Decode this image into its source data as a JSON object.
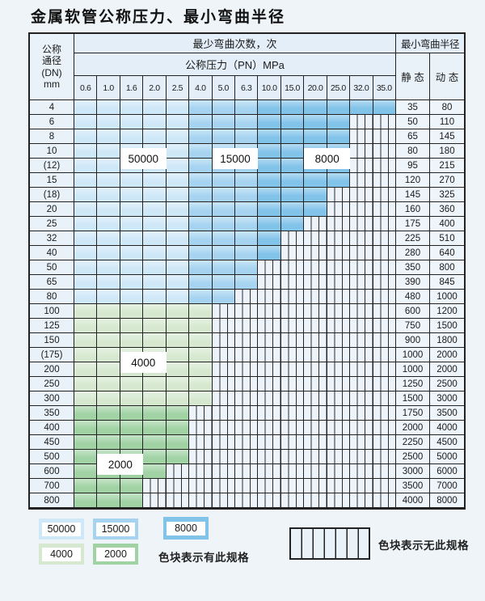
{
  "title": "金属软管公称压力、最小弯曲半径",
  "colors": {
    "c50000": "#cfe8f8",
    "c15000": "#a6d4f0",
    "c8000": "#82c3ea",
    "c4000": "#d6e9d0",
    "c2000": "#a0d2a4",
    "cell_bg": "#ecf3fa",
    "border": "#222222"
  },
  "table": {
    "corner_lines": [
      "公称",
      "通径",
      "(DN)",
      "mm"
    ],
    "bend_cycles_header": "最少弯曲次数，次",
    "pressure_header": "公称压力（PN）MPa",
    "radius_header": "最小弯曲半径",
    "static_header": "静 态",
    "dynamic_header": "动 态",
    "pressure_columns": [
      "0.6",
      "1.0",
      "1.6",
      "2.0",
      "2.5",
      "4.0",
      "5.0",
      "6.3",
      "10.0",
      "15.0",
      "20.0",
      "25.0",
      "32.0",
      "35.0"
    ],
    "blue_zone_cycles_by_column": {
      "0.6-2.5": "50000",
      "4.0-6.3": "15000",
      "10.0-35.0": "8000"
    },
    "rows": [
      {
        "dn": "4",
        "zone": "blue",
        "last_col_index": 13,
        "available_through": "35.0",
        "static": "35",
        "dynamic": "80"
      },
      {
        "dn": "6",
        "zone": "blue",
        "last_col_index": 11,
        "available_through": "25.0",
        "static": "50",
        "dynamic": "110"
      },
      {
        "dn": "8",
        "zone": "blue",
        "last_col_index": 11,
        "available_through": "25.0",
        "static": "65",
        "dynamic": "145"
      },
      {
        "dn": "10",
        "zone": "blue",
        "last_col_index": 11,
        "available_through": "25.0",
        "static": "80",
        "dynamic": "180"
      },
      {
        "dn": "(12)",
        "zone": "blue",
        "last_col_index": 11,
        "available_through": "25.0",
        "static": "95",
        "dynamic": "215"
      },
      {
        "dn": "15",
        "zone": "blue",
        "last_col_index": 11,
        "available_through": "25.0",
        "static": "120",
        "dynamic": "270"
      },
      {
        "dn": "(18)",
        "zone": "blue",
        "last_col_index": 10,
        "available_through": "20.0",
        "static": "145",
        "dynamic": "325"
      },
      {
        "dn": "20",
        "zone": "blue",
        "last_col_index": 10,
        "available_through": "20.0",
        "static": "160",
        "dynamic": "360"
      },
      {
        "dn": "25",
        "zone": "blue",
        "last_col_index": 9,
        "available_through": "15.0",
        "static": "175",
        "dynamic": "400"
      },
      {
        "dn": "32",
        "zone": "blue",
        "last_col_index": 8,
        "available_through": "10.0",
        "static": "225",
        "dynamic": "510"
      },
      {
        "dn": "40",
        "zone": "blue",
        "last_col_index": 8,
        "available_through": "10.0",
        "static": "280",
        "dynamic": "640"
      },
      {
        "dn": "50",
        "zone": "blue",
        "last_col_index": 7,
        "available_through": "6.3",
        "static": "350",
        "dynamic": "800"
      },
      {
        "dn": "65",
        "zone": "blue",
        "last_col_index": 7,
        "available_through": "6.3",
        "static": "390",
        "dynamic": "845"
      },
      {
        "dn": "80",
        "zone": "blue",
        "last_col_index": 6,
        "available_through": "5.0",
        "static": "480",
        "dynamic": "1000"
      },
      {
        "dn": "100",
        "zone": "c4000",
        "last_col_index": 5,
        "available_through": "4.0",
        "static": "600",
        "dynamic": "1200"
      },
      {
        "dn": "125",
        "zone": "c4000",
        "last_col_index": 5,
        "available_through": "4.0",
        "static": "750",
        "dynamic": "1500"
      },
      {
        "dn": "150",
        "zone": "c4000",
        "last_col_index": 5,
        "available_through": "4.0",
        "static": "900",
        "dynamic": "1800"
      },
      {
        "dn": "(175)",
        "zone": "c4000",
        "last_col_index": 5,
        "available_through": "4.0",
        "static": "1000",
        "dynamic": "2000"
      },
      {
        "dn": "200",
        "zone": "c4000",
        "last_col_index": 5,
        "available_through": "4.0",
        "static": "1000",
        "dynamic": "2000"
      },
      {
        "dn": "250",
        "zone": "c4000",
        "last_col_index": 5,
        "available_through": "4.0",
        "static": "1250",
        "dynamic": "2500"
      },
      {
        "dn": "300",
        "zone": "c4000",
        "last_col_index": 5,
        "available_through": "4.0",
        "static": "1500",
        "dynamic": "3000"
      },
      {
        "dn": "350",
        "zone": "c2000",
        "last_col_index": 4,
        "available_through": "2.5",
        "static": "1750",
        "dynamic": "3500"
      },
      {
        "dn": "400",
        "zone": "c2000",
        "last_col_index": 4,
        "available_through": "2.5",
        "static": "2000",
        "dynamic": "4000"
      },
      {
        "dn": "450",
        "zone": "c2000",
        "last_col_index": 4,
        "available_through": "2.5",
        "static": "2250",
        "dynamic": "4500"
      },
      {
        "dn": "500",
        "zone": "c2000",
        "last_col_index": 4,
        "available_through": "2.5",
        "static": "2500",
        "dynamic": "5000"
      },
      {
        "dn": "600",
        "zone": "c2000",
        "last_col_index": 3,
        "available_through": "2.0",
        "static": "3000",
        "dynamic": "6000"
      },
      {
        "dn": "700",
        "zone": "c2000",
        "last_col_index": 2,
        "available_through": "1.6",
        "static": "3500",
        "dynamic": "7000"
      },
      {
        "dn": "800",
        "zone": "c2000",
        "last_col_index": 2,
        "available_through": "1.6",
        "static": "4000",
        "dynamic": "8000"
      }
    ],
    "overlay_labels": [
      {
        "text": "50000",
        "col_start": 2,
        "col_end": 3,
        "row_boundary": 4
      },
      {
        "text": "15000",
        "col_start": 6,
        "col_end": 7,
        "row_boundary": 4
      },
      {
        "text": "8000",
        "col_start": 10,
        "col_end": 11,
        "row_boundary": 4
      },
      {
        "text": "4000",
        "col_start": 2,
        "col_end": 3,
        "row_boundary": 18
      },
      {
        "text": "2000",
        "col_start": 1,
        "col_end": 2,
        "row_boundary": 25
      }
    ]
  },
  "legend": {
    "swatches": [
      {
        "label": "50000",
        "color_key": "c50000"
      },
      {
        "label": "15000",
        "color_key": "c15000"
      },
      {
        "label": "8000",
        "color_key": "c8000"
      },
      {
        "label": "4000",
        "color_key": "c4000"
      },
      {
        "label": "2000",
        "color_key": "c2000"
      }
    ],
    "available_note": "色块表示有此规格",
    "unavailable_note": "色块表示无此规格"
  }
}
